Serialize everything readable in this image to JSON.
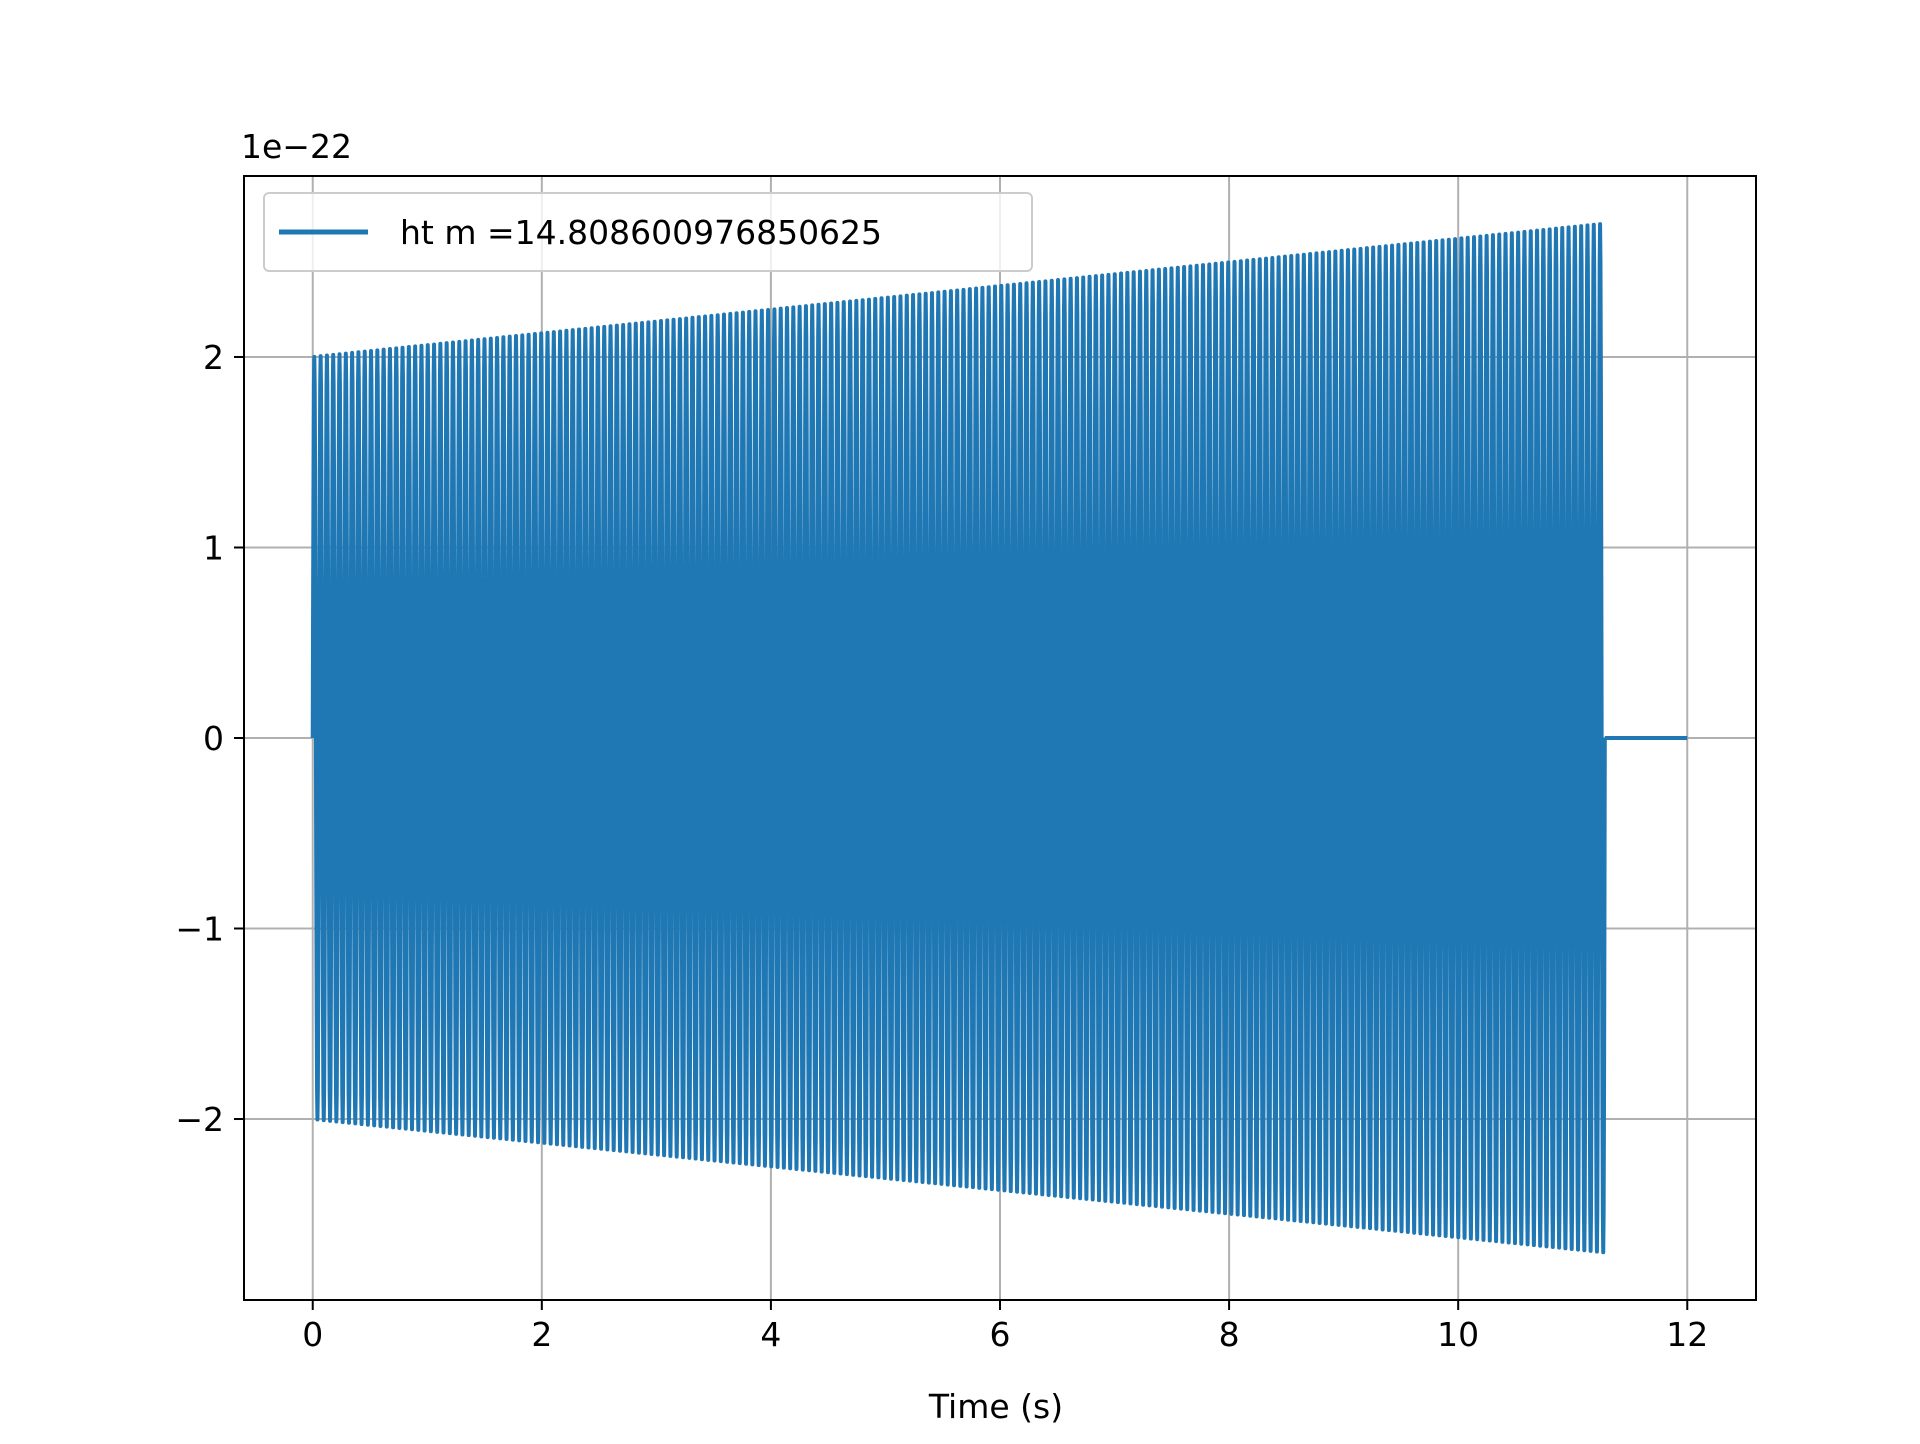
{
  "chart_data": {
    "type": "line",
    "title": "",
    "xlabel": "Time (s)",
    "ylabel": "",
    "y_offset_label": "1e−22",
    "y_scale": 1e-22,
    "xlim": [
      -0.6,
      12.6
    ],
    "ylim": [
      -2.95,
      2.95
    ],
    "x_ticks": [
      0,
      2,
      4,
      6,
      8,
      10,
      12
    ],
    "x_tick_labels": [
      "0",
      "2",
      "4",
      "6",
      "8",
      "10",
      "12"
    ],
    "y_ticks": [
      -2,
      -1,
      0,
      1,
      2
    ],
    "y_tick_labels": [
      "−2",
      "−1",
      "0",
      "1",
      "2"
    ],
    "grid": true,
    "legend_position": "top-left",
    "series": [
      {
        "name": "ht m =14.808600976850625",
        "color": "#1f77b4",
        "waveform": {
          "x_start": 0.0,
          "x_end": 11.28,
          "cycles": 205,
          "amplitude_start": 2.0,
          "amplitude_end": 2.7,
          "tail_x_end": 12.0,
          "tail_value": 0.0
        }
      }
    ]
  }
}
